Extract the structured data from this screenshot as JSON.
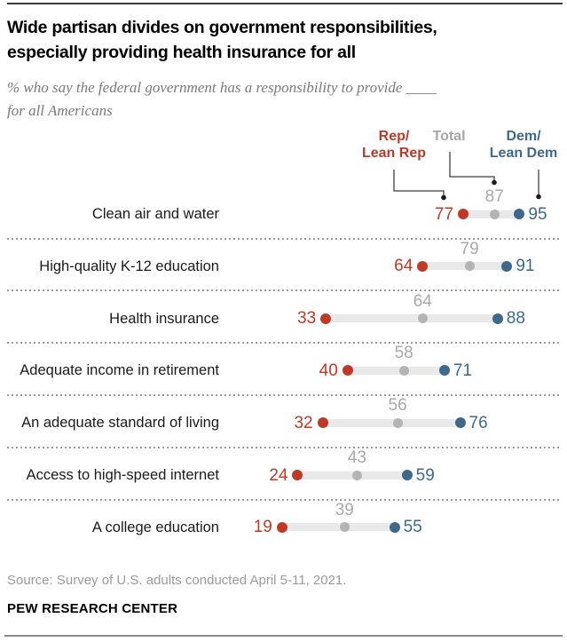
{
  "page": {
    "title_lines": [
      "Wide partisan divides on government responsibilities,",
      "especially providing health insurance for all"
    ],
    "subtitle_lines": [
      "% who say the federal government has a responsibility to provide ____",
      "for all Americans"
    ],
    "source": "Source: Survey of U.S. adults conducted April 5-11, 2021.",
    "brand": "PEW RESEARCH CENTER"
  },
  "colors": {
    "rep": "#bf3927",
    "dem": "#3d6a8c",
    "total_dot": "#b4b4b4",
    "total_label": "#a9a9a9",
    "bar": "#e9e9e9",
    "category_text": "#1a1a1a",
    "separator": "#9a9a9a",
    "connector": "#3f3f3f"
  },
  "legend": {
    "items": [
      {
        "id": "rep",
        "lines": [
          "Rep/",
          "Lean Rep"
        ],
        "color": "#bf3927"
      },
      {
        "id": "total",
        "lines": [
          "Total"
        ],
        "color": "#a6a6a6"
      },
      {
        "id": "dem",
        "lines": [
          "Dem/",
          "Lean Dem"
        ],
        "color": "#3d6a8c"
      }
    ]
  },
  "chart_data": {
    "type": "dumbbell",
    "categories": [
      "Clean air and water",
      "High-quality K-12 education",
      "Health insurance",
      "Adequate income in retirement",
      "An adequate standard of living",
      "Access to high-speed internet",
      "A college education"
    ],
    "series": [
      {
        "name": "Rep/Lean Rep",
        "color": "#bf3927",
        "values": [
          77,
          64,
          33,
          40,
          32,
          24,
          19
        ]
      },
      {
        "name": "Total",
        "color": "#b4b4b4",
        "values": [
          87,
          79,
          64,
          58,
          56,
          43,
          39
        ]
      },
      {
        "name": "Dem/Lean Dem",
        "color": "#3d6a8c",
        "values": [
          95,
          91,
          88,
          71,
          76,
          59,
          55
        ]
      }
    ],
    "value_range": [
      0,
      100
    ],
    "grid": false,
    "axes_shown": false,
    "legend_position": "top-right",
    "row_separator_style": "dotted"
  }
}
